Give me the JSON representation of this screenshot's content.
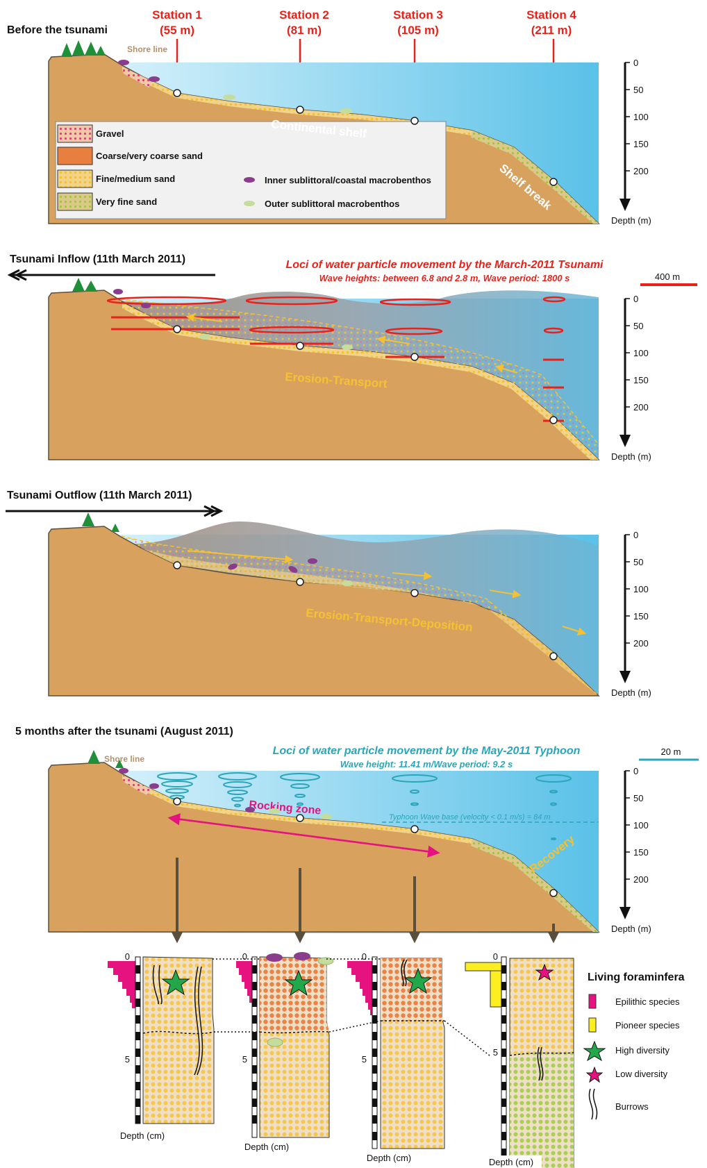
{
  "panels": [
    {
      "title": "Before the tsunami"
    },
    {
      "title": "Tsunami Inflow (11th March 2011)"
    },
    {
      "title": "Tsunami Outflow (11th March 2011)"
    },
    {
      "title": "5 months after the tsunami (August 2011)"
    }
  ],
  "stations": [
    {
      "name": "Station 1",
      "depth": "(55 m)"
    },
    {
      "name": "Station 2",
      "depth": "(81 m)"
    },
    {
      "name": "Station 3",
      "depth": "(105 m)"
    },
    {
      "name": "Station 4",
      "depth": "(211 m)"
    }
  ],
  "shoreline_label": "Shore line",
  "depth_scale": {
    "ticks": [
      "0",
      "50",
      "100",
      "150",
      "200"
    ],
    "label": "Depth (m)"
  },
  "legend": {
    "sediments": [
      "Gravel",
      "Coarse/very coarse sand",
      "Fine/medium sand",
      "Very fine sand"
    ],
    "benthos": [
      "Inner sublittoral/coastal macrobenthos",
      "Outer sublittoral macrobenthos"
    ]
  },
  "zone_labels": {
    "continental_shelf": "Continental shelf",
    "shelf_break": "Shelf break",
    "erosion_transport": "Erosion-Transport",
    "erosion_transport_deposition": "Erosion-Transport-Deposition",
    "rocking_zone": "Rocking zone",
    "recovery": "Recovery"
  },
  "tsunami_loci": {
    "title": "Loci of water particle movement by the March-2011 Tsunami",
    "subtitle": "Wave heights: between 6.8 and 2.8 m, Wave period: 1800 s",
    "scale": "400 m"
  },
  "typhoon_loci": {
    "title": "Loci of water particle movement by the May-2011 Typhoon",
    "subtitle": "Wave height: 11.41 m/Wave period: 9.2 s",
    "scale": "20 m",
    "wave_base": "Typhoon Wave base (velocity < 0.1 m/s) = 84 m"
  },
  "cores": {
    "depth_label": "Depth (cm)",
    "tick_top": "0",
    "tick_mid": "5"
  },
  "foram_legend": {
    "title": "Living foraminfera",
    "items": [
      "Epilithic species",
      "Pioneer species",
      "High diversity",
      "Low diversity",
      "Burrows"
    ]
  },
  "colors": {
    "station_red": "#e8221b",
    "seabed": "#d8a25e",
    "sea_light": "#dcf3fb",
    "sea_deep": "#5ac1e8",
    "fine_sand": "#f6c131",
    "very_fine_sand": "#9cc83a",
    "gravel": "#e0407a",
    "coarse_sand": "#e67a3c",
    "epilithic": "#e5127f",
    "pioneer": "#fcee21",
    "high_diversity": "#22a84b",
    "low_diversity": "#e5127f",
    "macrobenthos_inner": "#8a3d8c",
    "macrobenthos_outer": "#c5dc9c",
    "typhoon_teal": "#2aa6b8",
    "zone_yellow": "#f6c131",
    "rocking_magenta": "#e5127f"
  }
}
